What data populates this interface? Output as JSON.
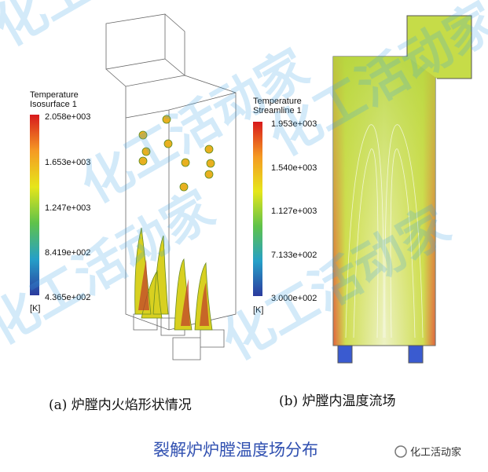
{
  "panel_a": {
    "colorbar_title": [
      "Temperature",
      "Isosurface 1"
    ],
    "ticks": [
      "2.058e+003",
      "1.653e+003",
      "1.247e+003",
      "8.419e+002",
      "4.365e+002"
    ],
    "unit": "[K]",
    "caption": "(a) 炉膛内火焰形状情况"
  },
  "panel_b": {
    "colorbar_title": [
      "Temperature",
      "Streamline 1"
    ],
    "ticks": [
      "1.953e+003",
      "1.540e+003",
      "1.127e+003",
      "7.133e+002",
      "3.000e+002"
    ],
    "unit": "[K]",
    "caption": "(b) 炉膛内温度流场"
  },
  "figure_caption": "裂解炉炉膛温度场分布",
  "logo": "化工活动家",
  "watermark": "化工活动家"
}
